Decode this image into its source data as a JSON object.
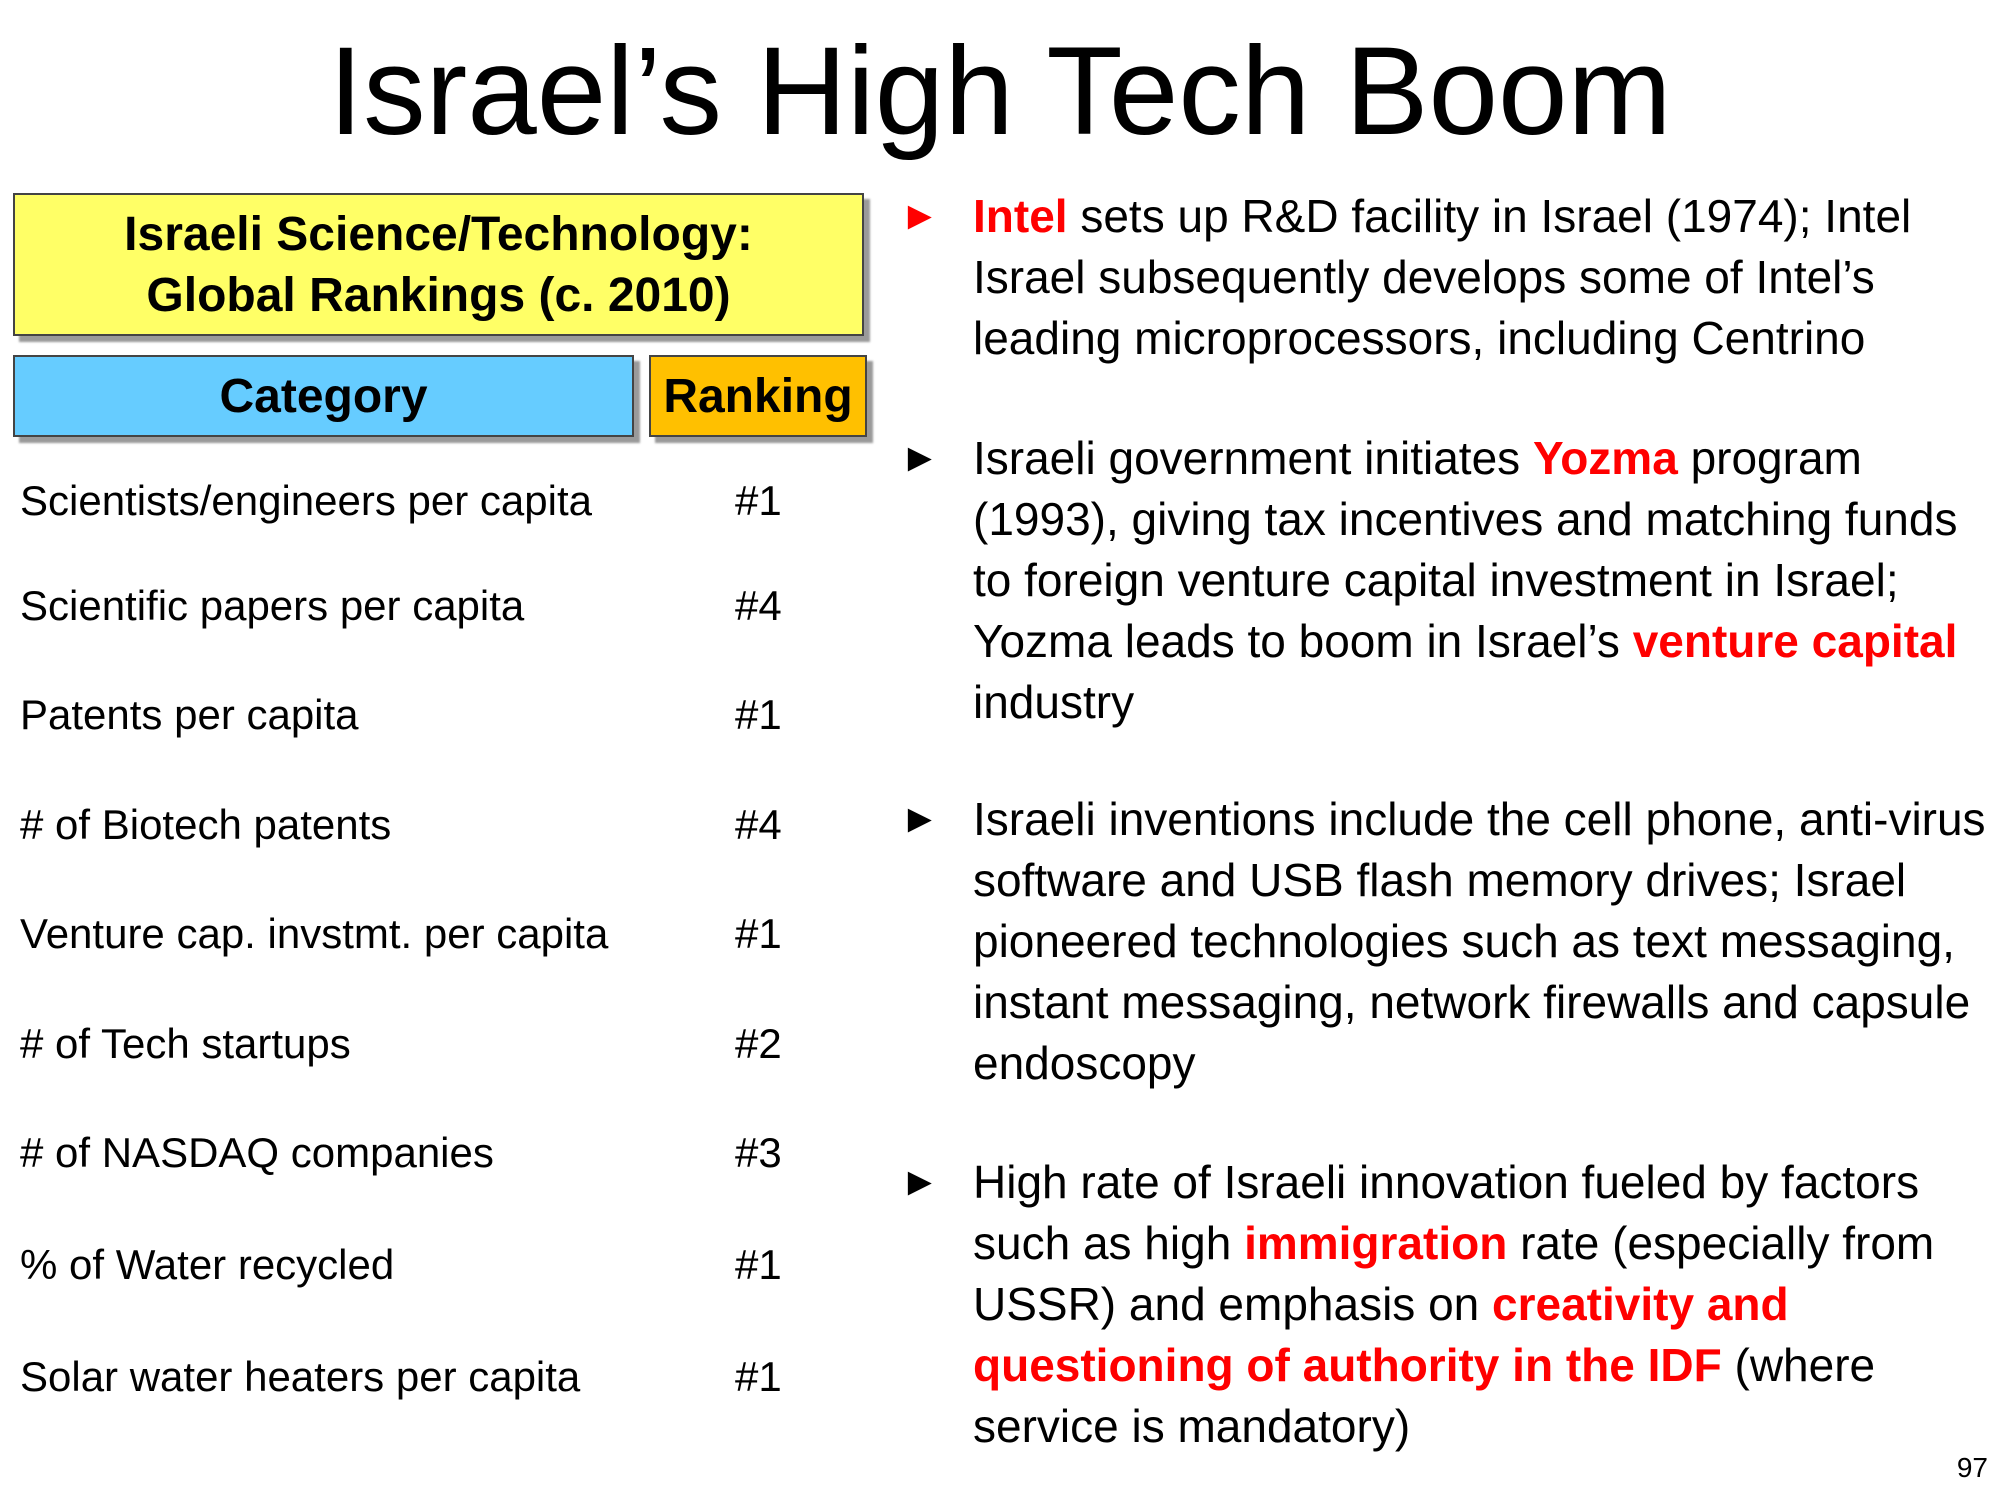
{
  "slide": {
    "title": "Israel’s High Tech Boom",
    "page_number": "97"
  },
  "rankings": {
    "heading_line1": "Israeli Science/Technology:",
    "heading_line2": "Global Rankings (c. 2010)",
    "col_category": "Category",
    "col_ranking": "Ranking",
    "rows": [
      {
        "category": "Scientists/engineers per capita",
        "rank": "#1"
      },
      {
        "category": "Scientific papers per capita",
        "rank": "#4"
      },
      {
        "category": "Patents per capita",
        "rank": "#1"
      },
      {
        "category": "# of Biotech patents",
        "rank": "#4"
      },
      {
        "category": "Venture cap. invstmt. per capita",
        "rank": "#1"
      },
      {
        "category": "# of Tech startups",
        "rank": "#2"
      },
      {
        "category": "# of NASDAQ companies",
        "rank": "#3"
      },
      {
        "category": "% of Water recycled",
        "rank": "#1"
      },
      {
        "category": "Solar water heaters per capita",
        "rank": "#1"
      }
    ]
  },
  "bullets": {
    "b1": {
      "arrow": "►",
      "hl1": "Intel",
      "t1": " sets up R&D facility in Israel (1974); Intel Israel subsequently develops some of Intel’s leading microprocessors, including Centrino"
    },
    "b2": {
      "arrow": "►",
      "t1": "Israeli government initiates ",
      "hl1": "Yozma",
      "t2": " program (1993), giving tax incentives and matching funds to foreign venture capital investment in Israel; Yozma leads to boom in Israel’s ",
      "hl2": "venture capital",
      "t3": " industry"
    },
    "b3": {
      "arrow": "►",
      "t1": "Israeli inventions include the cell phone, anti-virus software and USB flash memory drives; Israel pioneered technologies such as text messaging, instant messaging, network firewalls and capsule endoscopy"
    },
    "b4": {
      "arrow": "►",
      "t1": "High rate of Israeli innovation fueled by factors such as high ",
      "hl1": "immigration",
      "t2": " rate (especially from USSR) and emphasis on ",
      "hl2": "creativity and questioning of authority in the IDF",
      "t3": " (where service is mandatory)"
    }
  },
  "colors": {
    "heading_yellow": "#ffff66",
    "category_blue": "#66ccff",
    "ranking_orange": "#ffc000",
    "highlight_red": "#ff0000"
  }
}
